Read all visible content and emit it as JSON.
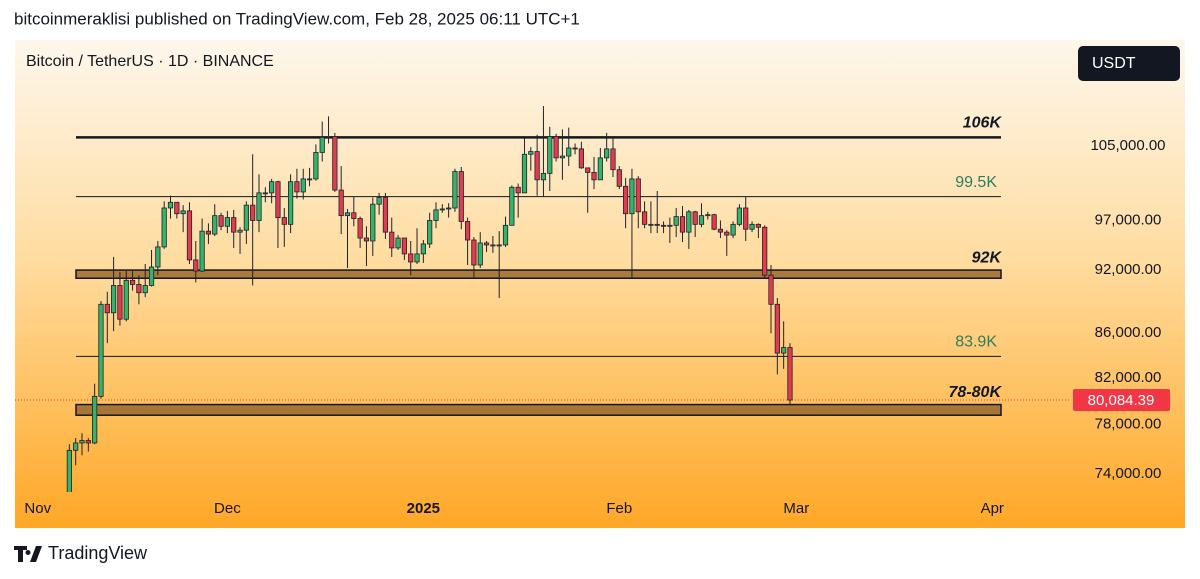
{
  "header": {
    "text": "bitcoinmeraklisi published on TradingView.com, Feb 28, 2025 06:11 UTC+1"
  },
  "footer": {
    "brand": "TradingView"
  },
  "chart_data": {
    "type": "candlestick",
    "title": "Bitcoin / TetherUS · 1D · BINANCE",
    "currency": "USDT",
    "log_scale": true,
    "up_color": "#34b36b",
    "down_color": "#e23b4e",
    "xlim": [
      -3.6,
      163.3
    ],
    "xticks": [
      {
        "value": 0,
        "label": "Nov"
      },
      {
        "value": 30,
        "label": "Dec"
      },
      {
        "value": 61,
        "label": "2025"
      },
      {
        "value": 92,
        "label": "Feb"
      },
      {
        "value": 120,
        "label": "Mar"
      },
      {
        "value": 151,
        "label": "Apr"
      }
    ],
    "ylim": [
      72600,
      117600
    ],
    "yticks": [
      {
        "value": 105000,
        "label": "105,000.00"
      },
      {
        "value": 97000,
        "label": "97,000.00"
      },
      {
        "value": 92000,
        "label": "92,000.00"
      },
      {
        "value": 86000,
        "label": "86,000.00"
      },
      {
        "value": 82000,
        "label": "82,000.00"
      },
      {
        "value": 78000,
        "label": "78,000.00"
      },
      {
        "value": 74000,
        "label": "74,000.00"
      }
    ],
    "last_price": {
      "value": 80084.39,
      "label": "80,084.39",
      "color": "#f23645"
    },
    "levels": [
      {
        "label": "106K",
        "value": 106000,
        "style": "major"
      },
      {
        "label": "99.5K",
        "value": 99500,
        "style": "minor",
        "color": "#2e7d5b"
      },
      {
        "label": "83.9K",
        "value": 83900,
        "style": "minor",
        "color": "#2e7d5b"
      }
    ],
    "bands": [
      {
        "label": "92K",
        "range": [
          91200,
          92000
        ],
        "color": "#9a6a2c"
      },
      {
        "label": "78-80K",
        "range": [
          78800,
          79700
        ],
        "color": "#9a6a2c"
      }
    ],
    "x": [
      5,
      6,
      7,
      8,
      9,
      10,
      11,
      12,
      13,
      14,
      15,
      16,
      17,
      18,
      19,
      20,
      21,
      22,
      23,
      24,
      25,
      26,
      27,
      28,
      29,
      30,
      31,
      32,
      33,
      34,
      35,
      36,
      37,
      38,
      39,
      40,
      41,
      42,
      43,
      44,
      45,
      46,
      47,
      48,
      49,
      50,
      51,
      52,
      53,
      54,
      55,
      56,
      57,
      58,
      59,
      60,
      61,
      62,
      63,
      64,
      65,
      66,
      67,
      68,
      69,
      70,
      71,
      72,
      73,
      74,
      75,
      76,
      77,
      78,
      79,
      80,
      81,
      82,
      83,
      84,
      85,
      86,
      87,
      88,
      89,
      90,
      91,
      92,
      93,
      94,
      95,
      96,
      97,
      98,
      99,
      100,
      101,
      102,
      103,
      104,
      105,
      106,
      107,
      108,
      109,
      110,
      111,
      112,
      113,
      114,
      115,
      116,
      117,
      118,
      119
    ],
    "open": [
      69400,
      75900,
      76500,
      76700,
      76500,
      80400,
      88700,
      87900,
      90500,
      87300,
      91000,
      90600,
      89800,
      90500,
      92300,
      94300,
      98300,
      98900,
      97700,
      98000,
      93000,
      91900,
      95900,
      95600,
      97500,
      96400,
      97300,
      95800,
      96000,
      98600,
      97000,
      99900,
      99900,
      101100,
      97300,
      96600,
      101100,
      100000,
      101400,
      101400,
      104300,
      106000,
      106100,
      100200,
      97500,
      97800,
      97200,
      95200,
      94900,
      98700,
      99400,
      95800,
      94200,
      95200,
      93600,
      92800,
      93600,
      94600,
      97000,
      98100,
      98200,
      98300,
      102200,
      96900,
      95000,
      92500,
      94700,
      94500,
      94500,
      94500,
      96500,
      100500,
      99900,
      104100,
      104400,
      101300,
      102000,
      106100,
      103700,
      103900,
      104800,
      104700,
      102600,
      102100,
      101300,
      103700,
      104700,
      102400,
      100600,
      97700,
      101400,
      97900,
      96600,
      96600,
      96500,
      96400,
      96500,
      97400,
      95800,
      97900,
      96600,
      97500,
      97600,
      96100,
      95800,
      95500,
      96600,
      98300,
      96100,
      96600,
      96300,
      91500,
      88700,
      84200,
      84700
    ],
    "high": [
      76400,
      76900,
      77300,
      76900,
      81500,
      89000,
      89900,
      93300,
      91800,
      91900,
      91900,
      91500,
      92600,
      94000,
      94900,
      99000,
      99600,
      98900,
      98600,
      98900,
      94900,
      97200,
      96700,
      98700,
      97800,
      98000,
      98100,
      96300,
      99000,
      104100,
      101900,
      100500,
      101400,
      101200,
      98300,
      101900,
      102500,
      102500,
      102600,
      105200,
      107800,
      108400,
      106500,
      102800,
      98200,
      99500,
      97400,
      96400,
      99400,
      99900,
      99900,
      97300,
      95500,
      95200,
      94900,
      96200,
      95000,
      97800,
      98900,
      98700,
      98800,
      102500,
      102700,
      97300,
      95300,
      95800,
      94900,
      95400,
      95900,
      97400,
      100700,
      100900,
      105900,
      104900,
      106300,
      109600,
      107200,
      106400,
      106900,
      107100,
      105300,
      105500,
      102600,
      103800,
      104800,
      106500,
      106000,
      102800,
      101500,
      102500,
      101700,
      99000,
      99000,
      100100,
      96900,
      97300,
      98300,
      98500,
      98100,
      98000,
      98800,
      97900,
      97700,
      97000,
      96000,
      96900,
      98700,
      99500,
      96900,
      96700,
      96500,
      92500,
      89300,
      87100,
      85100
    ],
    "low": [
      69300,
      74700,
      75500,
      75800,
      76400,
      80200,
      85100,
      86200,
      86700,
      87100,
      90000,
      88700,
      89400,
      90400,
      91500,
      94100,
      97200,
      97200,
      95800,
      92600,
      90800,
      91800,
      94600,
      95400,
      96000,
      95700,
      94200,
      93600,
      94600,
      90500,
      95800,
      98900,
      98800,
      94200,
      94300,
      95700,
      99300,
      99200,
      100600,
      101200,
      103300,
      105300,
      100000,
      95600,
      92200,
      96400,
      94200,
      92400,
      93400,
      97600,
      95100,
      93300,
      94000,
      93000,
      91500,
      92600,
      92700,
      94200,
      96200,
      97800,
      97300,
      97900,
      96100,
      92500,
      91200,
      92200,
      93800,
      93700,
      89300,
      94300,
      96500,
      97300,
      99900,
      102300,
      99600,
      99500,
      100100,
      103300,
      101300,
      102800,
      104100,
      102500,
      97800,
      100300,
      101300,
      103300,
      101600,
      100300,
      96200,
      91200,
      96200,
      96200,
      95700,
      95700,
      95700,
      94700,
      95300,
      94800,
      94100,
      95300,
      96300,
      97100,
      96000,
      95200,
      93400,
      95200,
      96400,
      94900,
      95800,
      95200,
      91200,
      86000,
      82300,
      82800,
      79700
    ],
    "close": [
      75900,
      76500,
      76700,
      76500,
      80400,
      88700,
      87900,
      90500,
      87300,
      91000,
      90600,
      89800,
      90500,
      92300,
      94300,
      98300,
      98900,
      97700,
      98000,
      93000,
      91900,
      95900,
      95600,
      97500,
      96400,
      97300,
      95800,
      96000,
      98600,
      97000,
      99900,
      99900,
      101100,
      97300,
      96600,
      101100,
      100000,
      101400,
      101400,
      104300,
      106000,
      106100,
      100200,
      97500,
      97800,
      97200,
      95200,
      94900,
      98700,
      99400,
      95800,
      94200,
      95200,
      93600,
      92800,
      93600,
      94600,
      97000,
      98100,
      98200,
      98300,
      102200,
      96900,
      95000,
      92500,
      94700,
      94500,
      94500,
      94500,
      96500,
      100500,
      99900,
      104100,
      104400,
      101300,
      102000,
      106100,
      103700,
      103900,
      104800,
      104700,
      102600,
      102100,
      101300,
      103700,
      104700,
      102400,
      100600,
      97700,
      101400,
      97900,
      96600,
      96600,
      96500,
      96400,
      96500,
      97400,
      95800,
      97900,
      96600,
      97500,
      97600,
      96100,
      95800,
      95500,
      96600,
      98300,
      96100,
      96600,
      96300,
      91500,
      88700,
      84200,
      84700,
      80084.39
    ]
  }
}
